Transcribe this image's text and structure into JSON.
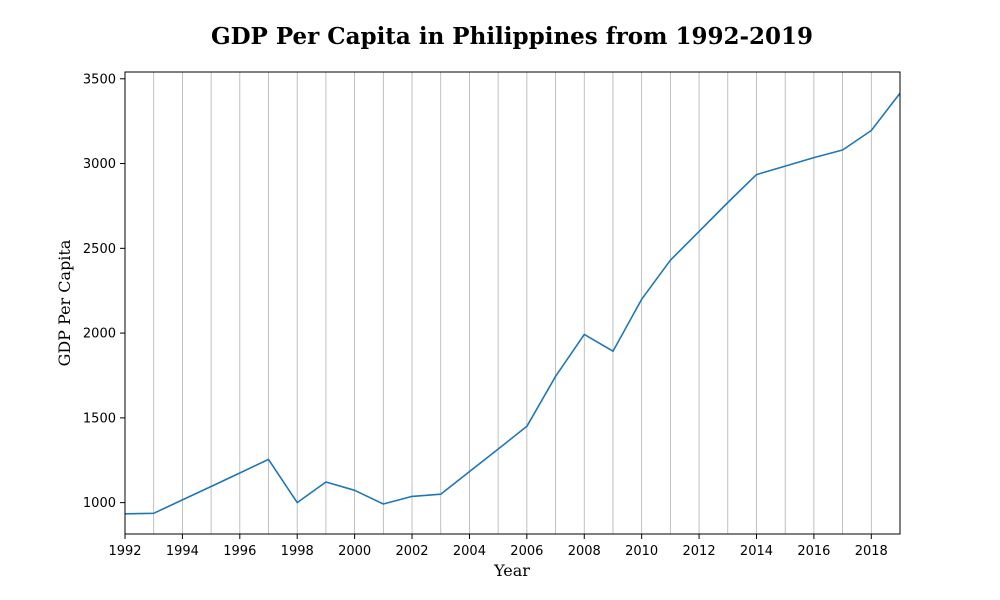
{
  "chart_data": {
    "type": "line",
    "title": "GDP Per Capita in Philippines from 1992-2019",
    "xlabel": "Year",
    "ylabel": "GDP Per Capita",
    "xlim": [
      1992,
      2019
    ],
    "ylim": [
      815,
      3540
    ],
    "grid": "vertical",
    "x_ticks": [
      1992,
      1994,
      1996,
      1998,
      2000,
      2002,
      2004,
      2006,
      2008,
      2010,
      2012,
      2014,
      2016,
      2018
    ],
    "y_ticks": [
      1000,
      1500,
      2000,
      2500,
      3000,
      3500
    ],
    "series": [
      {
        "color": "#1f77b4",
        "x": [
          1992,
          1993,
          1994,
          1995,
          1996,
          1997,
          1998,
          1999,
          2000,
          2001,
          2002,
          2003,
          2004,
          2005,
          2006,
          2007,
          2008,
          2009,
          2010,
          2011,
          2012,
          2013,
          2014,
          2015,
          2016,
          2017,
          2018,
          2019
        ],
        "values": [
          934,
          937,
          1016,
          1095,
          1175,
          1255,
          1000,
          1122,
          1073,
          992,
          1037,
          1050,
          1183,
          1316,
          1450,
          1745,
          1992,
          1893,
          2200,
          2430,
          2600,
          2770,
          2935,
          2985,
          3035,
          3080,
          3195,
          3415
        ]
      }
    ]
  }
}
